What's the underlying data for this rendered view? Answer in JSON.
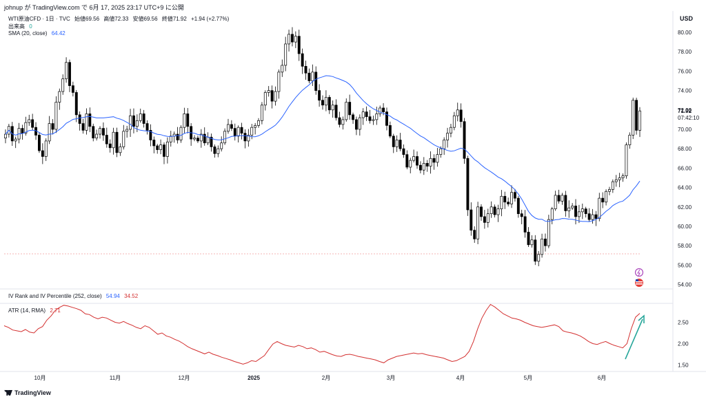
{
  "header": {
    "text": "johnup が TradingView.com で 6月 17, 2025 23:17 UTC+9 に公開"
  },
  "legend": {
    "symbol": "WTI原油CFD · 1日 · TVC",
    "open_label": "始値",
    "open": "69.56",
    "high_label": "高値",
    "high": "72.33",
    "low_label": "安値",
    "low": "69.56",
    "close_label": "終値",
    "close": "71.92",
    "change": "+1.94 (+2.77%)",
    "volume_label": "出来高",
    "volume": "0",
    "sma_label": "SMA (20, close)",
    "sma_value": "64.42",
    "iv_label": "IV Rank and IV Percentile (252, close)",
    "iv_rank": "54.94",
    "iv_pct": "34.52",
    "atr_label": "ATR (14, RMA)",
    "atr_value": "2.71"
  },
  "axis": {
    "currency": "USD",
    "price_ticks": [
      "80.00",
      "78.00",
      "76.00",
      "74.00",
      "72.00",
      "70.00",
      "68.00",
      "66.00",
      "64.00",
      "62.00",
      "60.00",
      "58.00",
      "56.00",
      "54.00"
    ],
    "atr_ticks": [
      "2.50",
      "2.00",
      "1.50"
    ],
    "months": [
      "10月",
      "11月",
      "12月",
      "2025",
      "2月",
      "3月",
      "4月",
      "5月",
      "6月"
    ],
    "last_price": "71.92",
    "countdown": "07:42:10"
  },
  "brand": {
    "name": "TradingView"
  },
  "colors": {
    "up": "#ffffff",
    "down": "#000000",
    "sma": "#2962ff",
    "atr": "#d32f2f",
    "arrow": "#26a69a",
    "grid": "#e0e3eb"
  },
  "chart_data": [
    {
      "type": "candlestick",
      "title": "WTI原油CFD",
      "ylim": [
        54,
        81
      ],
      "x_ticks": [
        "10月",
        "11月",
        "12月",
        "2025",
        "2月",
        "3月",
        "4月",
        "5月",
        "6月"
      ],
      "ohlc_path": [
        69.5,
        70.3,
        68.8,
        69.0,
        70.1,
        69.6,
        70.7,
        71.0,
        70.2,
        69.4,
        67.8,
        67.2,
        68.8,
        70.6,
        70.0,
        72.8,
        73.9,
        75.2,
        76.9,
        74.5,
        73.8,
        71.5,
        70.6,
        69.9,
        71.6,
        70.3,
        69.1,
        69.5,
        70.1,
        69.4,
        68.5,
        68.1,
        69.7,
        67.6,
        68.2,
        69.8,
        70.0,
        71.4,
        70.3,
        70.9,
        71.6,
        70.6,
        69.9,
        68.9,
        68.3,
        67.9,
        68.4,
        67.2,
        68.7,
        69.3,
        69.5,
        68.9,
        70.2,
        71.6,
        70.3,
        69.0,
        69.1,
        68.8,
        69.5,
        68.6,
        69.2,
        68.2,
        67.5,
        68.0,
        68.6,
        69.8,
        70.5,
        70.1,
        69.3,
        70.2,
        69.6,
        68.8,
        69.4,
        70.2,
        70.4,
        70.9,
        72.5,
        73.8,
        74.0,
        72.9,
        73.9,
        75.9,
        76.6,
        78.8,
        79.8,
        79.0,
        79.6,
        77.8,
        76.5,
        75.8,
        75.0,
        75.9,
        74.0,
        73.0,
        72.5,
        73.3,
        72.0,
        72.5,
        71.2,
        70.5,
        71.0,
        72.8,
        71.5,
        71.0,
        70.0,
        71.2,
        71.8,
        71.3,
        70.9,
        71.0,
        71.6,
        72.2,
        71.8,
        70.4,
        69.3,
        68.2,
        68.9,
        68.0,
        67.4,
        66.1,
        66.8,
        67.2,
        66.3,
        65.8,
        66.5,
        66.2,
        67.0,
        66.6,
        67.4,
        68.0,
        68.9,
        69.6,
        70.2,
        71.4,
        72.0,
        70.8,
        67.0,
        61.7,
        59.6,
        58.7,
        62.0,
        61.0,
        60.4,
        61.3,
        62.0,
        61.2,
        61.8,
        63.1,
        62.5,
        62.3,
        63.5,
        62.9,
        61.3,
        61.0,
        59.4,
        58.1,
        58.6,
        56.4,
        57.1,
        58.7,
        58.0,
        60.7,
        61.8,
        63.2,
        62.6,
        63.2,
        61.6,
        61.9,
        62.1,
        61.0,
        61.5,
        61.8,
        61.3,
        60.7,
        61.2,
        60.8,
        62.9,
        62.5,
        63.6,
        63.8,
        64.6,
        64.8,
        65.0,
        65.2,
        68.4,
        69.4,
        73.0,
        69.9,
        71.9
      ]
    },
    {
      "type": "line",
      "title": "SMA (20, close)",
      "last_value": 64.42
    },
    {
      "type": "line",
      "title": "ATR (14, RMA)",
      "ylim": [
        1.3,
        2.95
      ],
      "values": [
        2.42,
        2.38,
        2.32,
        2.3,
        2.28,
        2.33,
        2.27,
        2.25,
        2.35,
        2.4,
        2.55,
        2.65,
        2.78,
        2.85,
        2.9,
        2.88,
        2.85,
        2.82,
        2.78,
        2.7,
        2.68,
        2.62,
        2.58,
        2.62,
        2.6,
        2.55,
        2.5,
        2.48,
        2.52,
        2.47,
        2.43,
        2.38,
        2.35,
        2.42,
        2.38,
        2.3,
        2.22,
        2.25,
        2.18,
        2.15,
        2.1,
        2.06,
        2.0,
        1.93,
        1.88,
        1.84,
        1.8,
        1.76,
        1.8,
        1.75,
        1.72,
        1.68,
        1.65,
        1.62,
        1.58,
        1.55,
        1.52,
        1.55,
        1.6,
        1.58,
        1.65,
        1.72,
        1.86,
        1.99,
        2.05,
        2.0,
        1.96,
        1.94,
        1.92,
        1.96,
        1.93,
        1.88,
        1.9,
        1.86,
        1.8,
        1.82,
        1.78,
        1.74,
        1.71,
        1.7,
        1.74,
        1.75,
        1.73,
        1.7,
        1.68,
        1.66,
        1.64,
        1.62,
        1.58,
        1.55,
        1.62,
        1.66,
        1.7,
        1.72,
        1.74,
        1.76,
        1.78,
        1.76,
        1.77,
        1.74,
        1.72,
        1.7,
        1.68,
        1.66,
        1.62,
        1.58,
        1.6,
        1.65,
        1.7,
        1.82,
        2.05,
        2.35,
        2.6,
        2.78,
        2.92,
        2.86,
        2.78,
        2.7,
        2.65,
        2.6,
        2.58,
        2.55,
        2.5,
        2.46,
        2.42,
        2.4,
        2.38,
        2.4,
        2.42,
        2.44,
        2.4,
        2.3,
        2.27,
        2.25,
        2.22,
        2.18,
        2.12,
        2.05,
        2.0,
        1.98,
        2.02,
        2.05,
        2.0,
        1.96,
        1.93,
        1.9,
        2.0,
        2.35,
        2.62,
        2.71
      ]
    }
  ]
}
